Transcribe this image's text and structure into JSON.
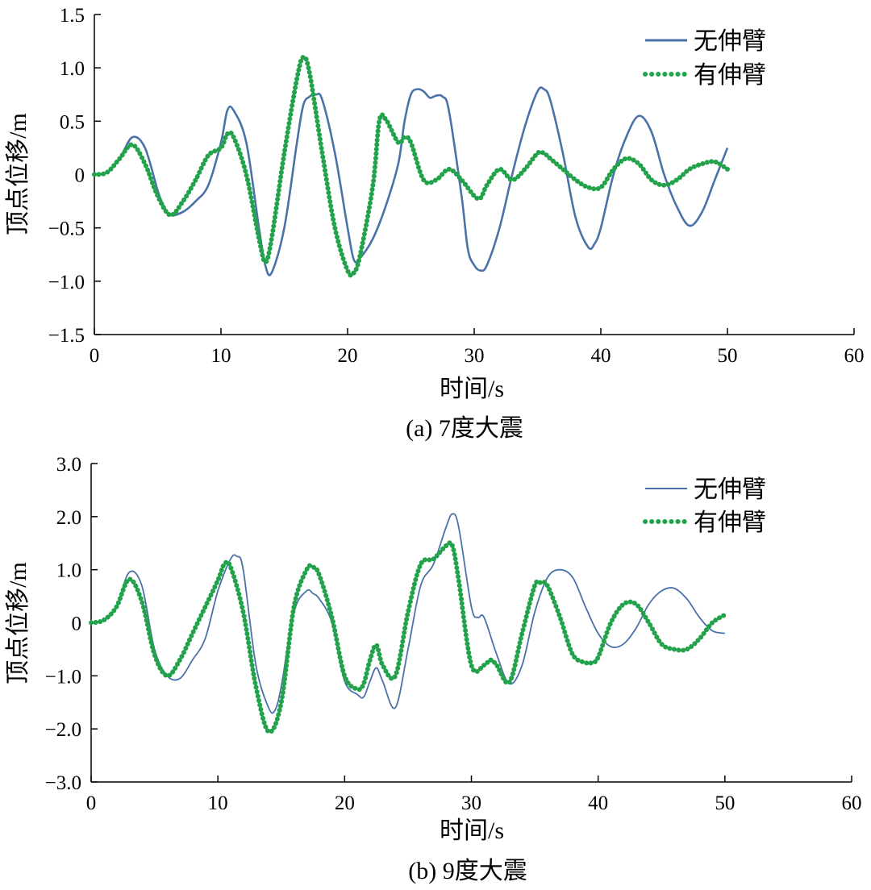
{
  "chart_data": [
    {
      "type": "line",
      "caption": "(a) 7度大震",
      "xlabel": "时间/s",
      "ylabel": "顶点位移/m",
      "xlim": [
        0,
        60
      ],
      "ylim": [
        -1.5,
        1.5
      ],
      "xticks": [
        0,
        10,
        20,
        30,
        40,
        50,
        60
      ],
      "yticks": [
        1.5,
        1.0,
        0.5,
        0,
        -0.5,
        -1.0,
        -1.5
      ],
      "ytick_labels": [
        "1.5",
        "1.0",
        "0.5",
        "0",
        "−0.5",
        "−1.0",
        "−1.5"
      ],
      "legend_position": "top-right",
      "series": [
        {
          "name": "无伸臂",
          "style": "solid",
          "color": "#4a72a8",
          "x": [
            0,
            1,
            2,
            3,
            4,
            5,
            5.5,
            6,
            7,
            8,
            9,
            10,
            10.5,
            11,
            12,
            13,
            13.5,
            14,
            15,
            16,
            16.5,
            17,
            17.5,
            18,
            19,
            20,
            20.5,
            21,
            22,
            23,
            24,
            24.5,
            25,
            25.5,
            26,
            26.5,
            27,
            27.5,
            28,
            29,
            29.5,
            30,
            30.5,
            31,
            32,
            33,
            34,
            35,
            35.5,
            36,
            37,
            38,
            39,
            39.5,
            40,
            41,
            42,
            43,
            44,
            45,
            46,
            47,
            48,
            49,
            50
          ],
          "y": [
            0,
            0.02,
            0.15,
            0.35,
            0.25,
            -0.15,
            -0.3,
            -0.38,
            -0.35,
            -0.25,
            -0.1,
            0.3,
            0.6,
            0.6,
            0.3,
            -0.5,
            -0.85,
            -0.92,
            -0.5,
            0.3,
            0.65,
            0.73,
            0.75,
            0.7,
            0.2,
            -0.5,
            -0.8,
            -0.78,
            -0.6,
            -0.3,
            0.1,
            0.5,
            0.75,
            0.8,
            0.78,
            0.72,
            0.74,
            0.73,
            0.6,
            -0.2,
            -0.7,
            -0.85,
            -0.9,
            -0.85,
            -0.5,
            0,
            0.45,
            0.78,
            0.8,
            0.7,
            0.2,
            -0.4,
            -0.68,
            -0.65,
            -0.5,
            0,
            0.35,
            0.55,
            0.4,
            0,
            -0.3,
            -0.48,
            -0.35,
            -0.05,
            0.25
          ]
        },
        {
          "name": "有伸臂",
          "style": "dotted",
          "color": "#22a24a",
          "x": [
            0,
            1,
            2,
            3,
            4,
            5,
            6,
            7,
            8,
            9,
            10,
            10.5,
            11,
            12,
            13,
            13.5,
            14,
            15,
            16,
            16.5,
            17,
            18,
            19,
            20,
            20.5,
            21,
            22,
            22.5,
            23,
            24,
            24.5,
            25,
            26,
            27,
            28,
            29,
            30,
            30.5,
            31,
            32,
            33,
            34,
            35,
            35.5,
            36,
            37,
            38,
            39,
            40,
            41,
            42,
            43,
            44,
            45,
            46,
            47,
            48,
            49,
            50
          ],
          "y": [
            0,
            0.02,
            0.15,
            0.28,
            0.1,
            -0.2,
            -0.38,
            -0.25,
            -0.05,
            0.18,
            0.25,
            0.38,
            0.35,
            0,
            -0.6,
            -0.82,
            -0.6,
            0.2,
            0.9,
            1.1,
            0.95,
            0.2,
            -0.5,
            -0.9,
            -0.92,
            -0.75,
            -0.1,
            0.5,
            0.52,
            0.3,
            0.35,
            0.3,
            -0.05,
            -0.05,
            0.05,
            -0.05,
            -0.2,
            -0.22,
            -0.1,
            0.05,
            -0.05,
            0.05,
            0.2,
            0.2,
            0.15,
            0.05,
            -0.05,
            -0.12,
            -0.12,
            0.05,
            0.15,
            0.1,
            -0.05,
            -0.1,
            -0.05,
            0.05,
            0.1,
            0.12,
            0.05
          ]
        }
      ]
    },
    {
      "type": "line",
      "caption": "(b) 9度大震",
      "xlabel": "时间/s",
      "ylabel": "顶点位移/m",
      "xlim": [
        0,
        60
      ],
      "ylim": [
        -3.0,
        3.0
      ],
      "xticks": [
        0,
        10,
        20,
        30,
        40,
        50,
        60
      ],
      "yticks": [
        3.0,
        2.0,
        1.0,
        0,
        -1.0,
        -2.0,
        -3.0
      ],
      "ytick_labels": [
        "3.0",
        "2.0",
        "1.0",
        "0",
        "−1.0",
        "−2.0",
        "−3.0"
      ],
      "legend_position": "top-right",
      "series": [
        {
          "name": "无伸臂",
          "style": "solid",
          "color": "#4a72a8",
          "x": [
            0,
            1,
            2,
            3,
            4,
            5,
            6,
            7,
            8,
            9,
            10,
            11,
            11.5,
            12,
            13,
            14,
            14.5,
            15,
            16,
            17,
            17.5,
            18,
            19,
            20,
            21,
            21.5,
            22,
            22.5,
            23,
            24,
            25,
            26,
            27,
            28,
            28.5,
            29,
            30,
            30.5,
            31,
            32,
            33,
            34,
            35,
            36,
            37,
            38,
            39,
            40,
            41,
            42,
            43,
            44,
            45,
            46,
            47,
            48,
            49,
            50
          ],
          "y": [
            0,
            0.05,
            0.3,
            0.95,
            0.7,
            -0.5,
            -1.0,
            -1.05,
            -0.7,
            -0.3,
            0.6,
            1.2,
            1.25,
            1.0,
            -0.8,
            -1.6,
            -1.65,
            -1.2,
            0.2,
            0.6,
            0.55,
            0.45,
            0,
            -1.1,
            -1.35,
            -1.4,
            -1.1,
            -0.85,
            -1.1,
            -1.6,
            -0.5,
            0.7,
            1.1,
            1.8,
            2.05,
            1.8,
            0.3,
            0.1,
            0.1,
            -0.6,
            -1.15,
            -0.8,
            0.2,
            0.85,
            1.0,
            0.85,
            0.3,
            -0.2,
            -0.45,
            -0.4,
            -0.1,
            0.35,
            0.6,
            0.65,
            0.45,
            0.1,
            -0.15,
            -0.2
          ]
        },
        {
          "name": "有伸臂",
          "style": "dotted",
          "color": "#22a24a",
          "x": [
            0,
            1,
            2,
            3,
            4,
            5,
            6,
            7,
            8,
            9,
            10,
            10.5,
            11,
            12,
            13,
            14,
            15,
            16,
            17,
            17.5,
            18,
            19,
            20,
            21,
            21.5,
            22,
            22.5,
            23,
            24,
            25,
            26,
            27,
            28,
            28.5,
            29,
            30,
            31,
            31.5,
            32,
            33,
            34,
            35,
            35.5,
            36,
            37,
            38,
            39,
            39.5,
            40,
            41,
            42,
            43,
            44,
            45,
            46,
            47,
            48,
            49,
            50
          ],
          "y": [
            0,
            0.05,
            0.3,
            0.82,
            0.4,
            -0.6,
            -1.0,
            -0.7,
            -0.2,
            0.3,
            0.8,
            1.1,
            1.05,
            0.2,
            -1.2,
            -2.05,
            -1.5,
            0.3,
            1.0,
            1.05,
            0.9,
            0.1,
            -1.0,
            -1.25,
            -1.15,
            -0.7,
            -0.42,
            -0.8,
            -1.0,
            0.2,
            1.1,
            1.2,
            1.45,
            1.45,
            0.8,
            -0.8,
            -0.8,
            -0.7,
            -0.8,
            -1.12,
            -0.2,
            0.7,
            0.75,
            0.7,
            0.1,
            -0.6,
            -0.75,
            -0.75,
            -0.65,
            0,
            0.35,
            0.35,
            0,
            -0.4,
            -0.5,
            -0.5,
            -0.3,
            0,
            0.15
          ]
        }
      ]
    }
  ]
}
